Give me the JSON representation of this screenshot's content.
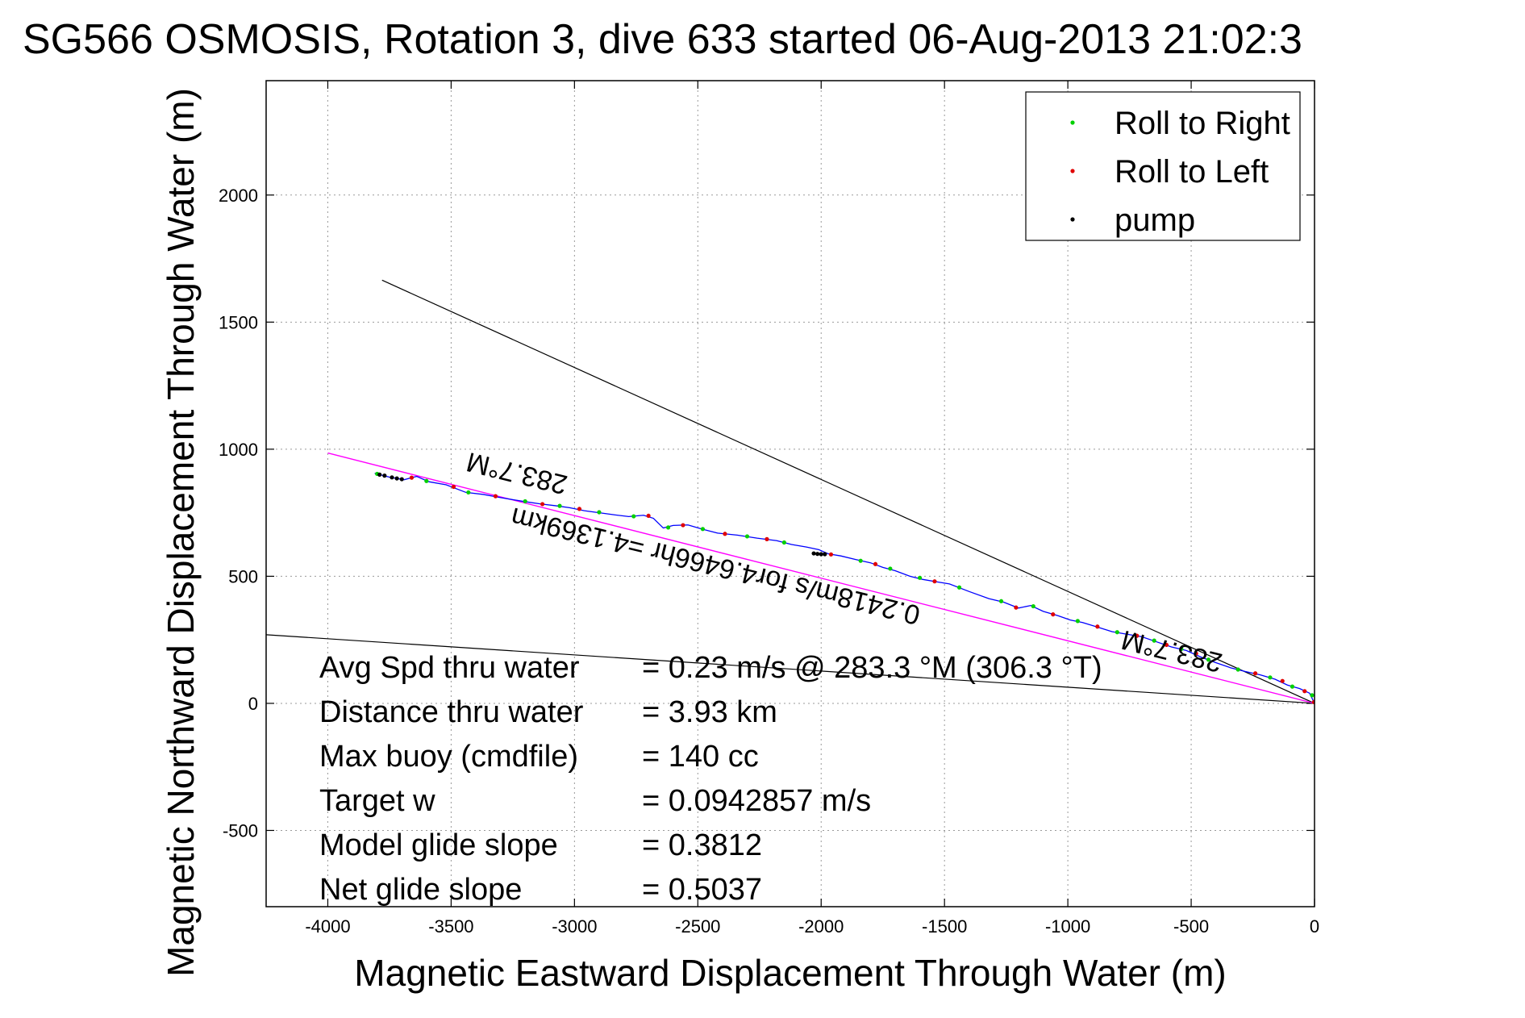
{
  "chart_data": {
    "type": "line",
    "title": "SG566 OSMOSIS, Rotation 3, dive 633 started 06-Aug-2013 21:02:3",
    "xlabel": "Magnetic Eastward Displacement Through Water (m)",
    "ylabel": "Magnetic Northward Displacement Through Water (m)",
    "xlim": [
      -4250,
      0
    ],
    "ylim": [
      -800,
      2450
    ],
    "xticks": [
      -4000,
      -3500,
      -3000,
      -2500,
      -2000,
      -1500,
      -1000,
      -500,
      0
    ],
    "yticks": [
      -500,
      0,
      500,
      1000,
      1500,
      2000
    ],
    "grid": true,
    "legend_position": "top-right",
    "legend": [
      {
        "label": "Roll to Right",
        "color": "#00d000"
      },
      {
        "label": "Roll to Left",
        "color": "#e00000"
      },
      {
        "label": "pump",
        "color": "#000000"
      }
    ],
    "track_color": "#0000ff",
    "track": [
      [
        -3810,
        905
      ],
      [
        -3750,
        890
      ],
      [
        -3690,
        880
      ],
      [
        -3640,
        893
      ],
      [
        -3590,
        872
      ],
      [
        -3520,
        860
      ],
      [
        -3440,
        830
      ],
      [
        -3370,
        822
      ],
      [
        -3290,
        808
      ],
      [
        -3210,
        795
      ],
      [
        -3140,
        785
      ],
      [
        -3080,
        778
      ],
      [
        -3020,
        770
      ],
      [
        -2960,
        758
      ],
      [
        -2900,
        750
      ],
      [
        -2840,
        742
      ],
      [
        -2780,
        735
      ],
      [
        -2720,
        740
      ],
      [
        -2680,
        728
      ],
      [
        -2640,
        690
      ],
      [
        -2600,
        700
      ],
      [
        -2540,
        702
      ],
      [
        -2480,
        685
      ],
      [
        -2420,
        670
      ],
      [
        -2340,
        662
      ],
      [
        -2260,
        650
      ],
      [
        -2180,
        640
      ],
      [
        -2120,
        625
      ],
      [
        -2060,
        615
      ],
      [
        -2010,
        605
      ],
      [
        -1970,
        588
      ],
      [
        -1920,
        580
      ],
      [
        -1860,
        566
      ],
      [
        -1800,
        553
      ],
      [
        -1750,
        535
      ],
      [
        -1700,
        522
      ],
      [
        -1640,
        500
      ],
      [
        -1590,
        488
      ],
      [
        -1530,
        478
      ],
      [
        -1480,
        470
      ],
      [
        -1400,
        440
      ],
      [
        -1320,
        412
      ],
      [
        -1260,
        398
      ],
      [
        -1200,
        375
      ],
      [
        -1150,
        385
      ],
      [
        -1100,
        362
      ],
      [
        -1040,
        345
      ],
      [
        -990,
        328
      ],
      [
        -940,
        318
      ],
      [
        -880,
        300
      ],
      [
        -820,
        282
      ],
      [
        -760,
        272
      ],
      [
        -700,
        262
      ],
      [
        -640,
        242
      ],
      [
        -580,
        222
      ],
      [
        -520,
        208
      ],
      [
        -460,
        182
      ],
      [
        -400,
        160
      ],
      [
        -340,
        140
      ],
      [
        -280,
        125
      ],
      [
        -220,
        112
      ],
      [
        -160,
        95
      ],
      [
        -110,
        72
      ],
      [
        -60,
        58
      ],
      [
        -20,
        40
      ],
      [
        0,
        0
      ]
    ],
    "roll_right_points": [
      [
        -3800,
        903
      ],
      [
        -3600,
        875
      ],
      [
        -3430,
        830
      ],
      [
        -3200,
        795
      ],
      [
        -3060,
        777
      ],
      [
        -2900,
        752
      ],
      [
        -2760,
        736
      ],
      [
        -2620,
        692
      ],
      [
        -2480,
        686
      ],
      [
        -2300,
        657
      ],
      [
        -2150,
        633
      ],
      [
        -1840,
        561
      ],
      [
        -1720,
        530
      ],
      [
        -1600,
        494
      ],
      [
        -1440,
        456
      ],
      [
        -1270,
        402
      ],
      [
        -1140,
        382
      ],
      [
        -960,
        324
      ],
      [
        -800,
        280
      ],
      [
        -650,
        247
      ],
      [
        -540,
        214
      ],
      [
        -430,
        172
      ],
      [
        -310,
        133
      ],
      [
        -180,
        102
      ],
      [
        -90,
        66
      ],
      [
        -10,
        32
      ]
    ],
    "roll_left_points": [
      [
        -3660,
        888
      ],
      [
        -3490,
        852
      ],
      [
        -3320,
        815
      ],
      [
        -3130,
        784
      ],
      [
        -2980,
        765
      ],
      [
        -2700,
        738
      ],
      [
        -2560,
        701
      ],
      [
        -2390,
        667
      ],
      [
        -2220,
        646
      ],
      [
        -1960,
        586
      ],
      [
        -1780,
        548
      ],
      [
        -1540,
        480
      ],
      [
        -1210,
        377
      ],
      [
        -1060,
        350
      ],
      [
        -880,
        302
      ],
      [
        -720,
        266
      ],
      [
        -600,
        230
      ],
      [
        -480,
        196
      ],
      [
        -240,
        118
      ],
      [
        -130,
        88
      ],
      [
        -40,
        48
      ],
      [
        -2,
        5
      ]
    ],
    "pump_points": [
      [
        -3790,
        900
      ],
      [
        -3770,
        896
      ],
      [
        -3740,
        889
      ],
      [
        -3720,
        885
      ],
      [
        -3700,
        882
      ],
      [
        -2030,
        590
      ],
      [
        -2015,
        588
      ],
      [
        -2000,
        587
      ],
      [
        -1985,
        587
      ]
    ],
    "model_heading_line": {
      "color": "#ff00ff",
      "points": [
        [
          -4000,
          985
        ],
        [
          0,
          0
        ]
      ]
    },
    "boundary_lines": [
      {
        "color": "#000000",
        "points": [
          [
            -3780,
            1665
          ],
          [
            0,
            0
          ]
        ]
      },
      {
        "color": "#000000",
        "points": [
          [
            -4250,
            270
          ],
          [
            0,
            0
          ]
        ]
      }
    ],
    "annotations": [
      {
        "text": "283.7°M",
        "x": -3225,
        "y": 940,
        "angle_deg": 193.7
      },
      {
        "text": "0.2418m/s for4.6466hr =4.1369km",
        "x": -2420,
        "y": 575,
        "angle_deg": 193.7
      },
      {
        "text": "283.7°M",
        "x": -570,
        "y": 240,
        "angle_deg": 193.7
      }
    ],
    "stats": [
      {
        "label": "Avg Spd thru water",
        "value": "=  0.23 m/s @ 283.3 °M (306.3 °T)"
      },
      {
        "label": "Distance thru water",
        "value": "=  3.93 km"
      },
      {
        "label": "Max buoy (cmdfile)",
        "value": "= 140 cc"
      },
      {
        "label": "Target w",
        "value": "= 0.0942857 m/s"
      },
      {
        "label": "Model glide slope",
        "value": "= 0.3812"
      },
      {
        "label": "Net glide slope",
        "value": "= 0.5037"
      }
    ]
  }
}
